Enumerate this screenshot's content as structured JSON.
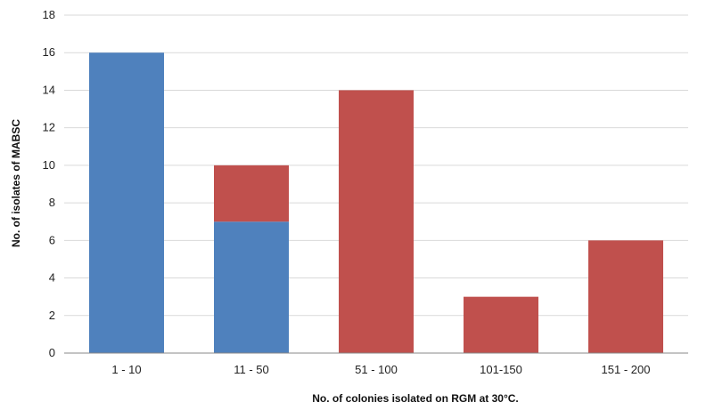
{
  "chart_data": {
    "type": "bar",
    "stacked": true,
    "categories": [
      "1 - 10",
      "11 - 50",
      "51 - 100",
      "101-150",
      "151 - 200"
    ],
    "series": [
      {
        "color": "#4f81bd",
        "values": [
          16,
          7,
          0,
          0,
          0
        ]
      },
      {
        "color": "#c0504d",
        "values": [
          0,
          3,
          14,
          3,
          6
        ]
      }
    ],
    "xlabel": "No. of colonies isolated on RGM at 30°C.",
    "ylabel": "No. of isolates of MABSC",
    "ylim": [
      0,
      18
    ],
    "yticks": [
      "0",
      "2",
      "4",
      "6",
      "8",
      "10",
      "12",
      "14",
      "16",
      "18"
    ],
    "grid": true,
    "legend": "none"
  }
}
